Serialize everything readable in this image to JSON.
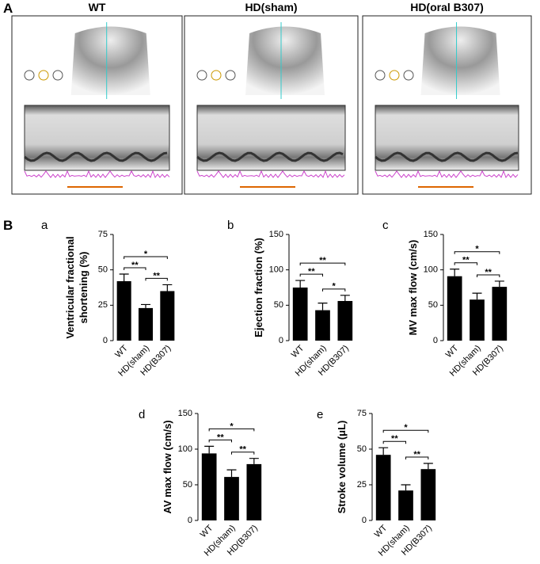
{
  "figure": {
    "panel_a_label": "A",
    "panel_b_label": "B",
    "image_titles": [
      "WT",
      "HD(sham)",
      "HD(oral B307)"
    ]
  },
  "chart_data": [
    {
      "type": "bar",
      "label": "a",
      "ylabel": [
        "Ventricular fractional",
        "shortening (%)"
      ],
      "categories": [
        "WT",
        "HD(sham)",
        "HD(B307)"
      ],
      "values": [
        42,
        23,
        35
      ],
      "errors": [
        5,
        2.5,
        4.5
      ],
      "color": "#000000",
      "ylim": [
        0,
        75
      ],
      "yticks": [
        0,
        25,
        50,
        75
      ],
      "significance": [
        {
          "pair": [
            "WT",
            "HD(sham)"
          ],
          "label": "**"
        },
        {
          "pair": [
            "WT",
            "HD(B307)"
          ],
          "label": "*"
        },
        {
          "pair": [
            "HD(sham)",
            "HD(B307)"
          ],
          "label": "**"
        }
      ]
    },
    {
      "type": "bar",
      "label": "b",
      "ylabel": "Ejection fraction (%)",
      "categories": [
        "WT",
        "HD(sham)",
        "HD(B307)"
      ],
      "values": [
        75,
        43,
        56
      ],
      "errors": [
        10,
        10,
        8
      ],
      "color": "#000000",
      "ylim": [
        0,
        150
      ],
      "yticks": [
        0,
        50,
        100,
        150
      ],
      "significance": [
        {
          "pair": [
            "WT",
            "HD(sham)"
          ],
          "label": "**"
        },
        {
          "pair": [
            "WT",
            "HD(B307)"
          ],
          "label": "**"
        },
        {
          "pair": [
            "HD(sham)",
            "HD(B307)"
          ],
          "label": "*"
        }
      ]
    },
    {
      "type": "bar",
      "label": "c",
      "ylabel": "MV max flow (cm/s)",
      "categories": [
        "WT",
        "HD(sham)",
        "HD(B307)"
      ],
      "values": [
        91,
        58,
        76
      ],
      "errors": [
        10,
        9,
        8
      ],
      "color": "#000000",
      "ylim": [
        0,
        150
      ],
      "yticks": [
        0,
        50,
        100,
        150
      ],
      "significance": [
        {
          "pair": [
            "WT",
            "HD(sham)"
          ],
          "label": "**"
        },
        {
          "pair": [
            "WT",
            "HD(B307)"
          ],
          "label": "*"
        },
        {
          "pair": [
            "HD(sham)",
            "HD(B307)"
          ],
          "label": "**"
        }
      ]
    },
    {
      "type": "bar",
      "label": "d",
      "ylabel": "AV max flow (cm/s)",
      "categories": [
        "WT",
        "HD(sham)",
        "HD(B307)"
      ],
      "values": [
        94,
        61,
        79
      ],
      "errors": [
        10,
        10,
        8
      ],
      "color": "#000000",
      "ylim": [
        0,
        150
      ],
      "yticks": [
        0,
        50,
        100,
        150
      ],
      "significance": [
        {
          "pair": [
            "WT",
            "HD(sham)"
          ],
          "label": "**"
        },
        {
          "pair": [
            "WT",
            "HD(B307)"
          ],
          "label": "*"
        },
        {
          "pair": [
            "HD(sham)",
            "HD(B307)"
          ],
          "label": "**"
        }
      ]
    },
    {
      "type": "bar",
      "label": "e",
      "ylabel": "Stroke volume (μL)",
      "categories": [
        "WT",
        "HD(sham)",
        "HD(B307)"
      ],
      "values": [
        46,
        21,
        36
      ],
      "errors": [
        5,
        4,
        4
      ],
      "color": "#000000",
      "ylim": [
        0,
        75
      ],
      "yticks": [
        0,
        25,
        50,
        75
      ],
      "significance": [
        {
          "pair": [
            "WT",
            "HD(sham)"
          ],
          "label": "**"
        },
        {
          "pair": [
            "WT",
            "HD(B307)"
          ],
          "label": "*"
        },
        {
          "pair": [
            "HD(sham)",
            "HD(B307)"
          ],
          "label": "**"
        }
      ]
    }
  ]
}
